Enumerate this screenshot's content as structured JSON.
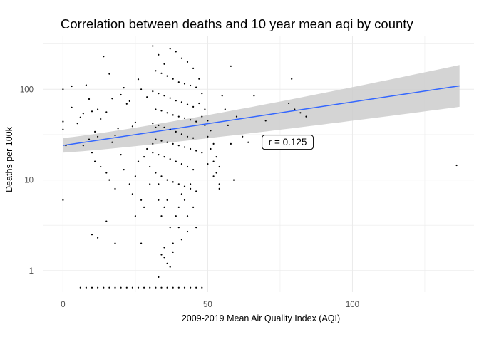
{
  "chart_data": {
    "type": "scatter",
    "title": "Correlation between deaths and 10 year mean aqi by county",
    "xlabel": "2009-2019 Mean Air Quality Index (AQI)",
    "ylabel": "Deaths per 100k",
    "x_scale": "linear",
    "y_scale": "log10",
    "xlim": [
      -7,
      142
    ],
    "ylim": [
      0.58,
      390
    ],
    "x_ticks": [
      0,
      50,
      100
    ],
    "x_tick_labels": [
      "0",
      "50",
      "100"
    ],
    "y_ticks": [
      1,
      10,
      100
    ],
    "y_tick_labels": [
      "1",
      "10",
      "100"
    ],
    "grid": true,
    "legend": "none",
    "colors": {
      "points": "#000000",
      "fit_line": "#3366ff",
      "confidence_band": "#cccccc",
      "grid": "#ebebeb"
    },
    "fit": {
      "method": "linear (log y)",
      "x": [
        0,
        137
      ],
      "y": [
        24,
        109
      ],
      "band_lower": [
        20,
        64
      ],
      "band_upper": [
        29,
        185
      ]
    },
    "annotation": {
      "text": "r = 0.125",
      "x": 69,
      "y": 28
    },
    "points": [
      [
        0,
        100
      ],
      [
        0,
        36
      ],
      [
        0,
        6
      ],
      [
        0,
        44
      ],
      [
        1,
        24
      ],
      [
        3,
        108
      ],
      [
        3,
        63
      ],
      [
        5,
        42
      ],
      [
        6,
        49
      ],
      [
        7,
        54
      ],
      [
        8,
        111
      ],
      [
        9,
        78
      ],
      [
        10,
        57
      ],
      [
        11,
        34
      ],
      [
        12,
        60
      ],
      [
        13,
        47
      ],
      [
        14,
        230
      ],
      [
        15,
        56
      ],
      [
        16,
        148
      ],
      [
        17,
        79
      ],
      [
        18,
        31
      ],
      [
        19,
        37
      ],
      [
        20,
        87
      ],
      [
        21,
        104
      ],
      [
        22,
        69
      ],
      [
        23,
        74
      ],
      [
        24,
        39
      ],
      [
        25,
        43
      ],
      [
        26,
        129
      ],
      [
        27,
        100
      ],
      [
        28,
        5
      ],
      [
        29,
        82
      ],
      [
        7,
        24
      ],
      [
        9,
        28
      ],
      [
        10,
        20
      ],
      [
        11,
        16
      ],
      [
        12,
        30
      ],
      [
        13,
        14
      ],
      [
        15,
        12
      ],
      [
        16,
        10
      ],
      [
        17,
        26
      ],
      [
        18,
        8
      ],
      [
        20,
        19
      ],
      [
        21,
        13
      ],
      [
        23,
        9
      ],
      [
        24,
        7
      ],
      [
        25,
        11
      ],
      [
        26,
        16
      ],
      [
        27,
        6
      ],
      [
        28,
        18
      ],
      [
        29,
        22
      ],
      [
        30,
        14
      ],
      [
        30,
        9
      ],
      [
        31,
        25
      ],
      [
        32,
        38
      ],
      [
        33,
        6
      ],
      [
        33,
        9
      ],
      [
        34,
        4
      ],
      [
        35,
        5
      ],
      [
        36,
        6
      ],
      [
        37,
        3
      ],
      [
        38,
        2
      ],
      [
        39,
        4
      ],
      [
        40,
        3
      ],
      [
        40,
        5
      ],
      [
        41,
        7
      ],
      [
        42,
        6
      ],
      [
        43,
        4
      ],
      [
        44,
        9
      ],
      [
        45,
        5
      ],
      [
        46,
        3
      ],
      [
        10,
        2.5
      ],
      [
        12,
        2.3
      ],
      [
        15,
        3.5
      ],
      [
        18,
        2
      ],
      [
        25,
        4
      ],
      [
        27,
        2
      ],
      [
        34,
        1.5
      ],
      [
        35,
        1.4
      ],
      [
        36,
        1.2
      ],
      [
        37,
        1.1
      ],
      [
        33,
        0.85
      ],
      [
        35,
        1.8
      ],
      [
        38,
        1.6
      ],
      [
        41,
        2.2
      ],
      [
        43,
        2.7
      ],
      [
        31,
        300
      ],
      [
        33,
        240
      ],
      [
        35,
        190
      ],
      [
        37,
        280
      ],
      [
        39,
        260
      ],
      [
        41,
        220
      ],
      [
        43,
        200
      ],
      [
        45,
        170
      ],
      [
        32,
        160
      ],
      [
        34,
        150
      ],
      [
        36,
        140
      ],
      [
        38,
        130
      ],
      [
        40,
        120
      ],
      [
        42,
        115
      ],
      [
        44,
        110
      ],
      [
        46,
        105
      ],
      [
        31,
        95
      ],
      [
        33,
        90
      ],
      [
        35,
        85
      ],
      [
        37,
        80
      ],
      [
        39,
        75
      ],
      [
        41,
        72
      ],
      [
        43,
        68
      ],
      [
        45,
        64
      ],
      [
        32,
        60
      ],
      [
        34,
        58
      ],
      [
        36,
        55
      ],
      [
        38,
        52
      ],
      [
        40,
        50
      ],
      [
        42,
        48
      ],
      [
        44,
        46
      ],
      [
        46,
        44
      ],
      [
        31,
        42
      ],
      [
        33,
        40
      ],
      [
        35,
        38
      ],
      [
        37,
        36
      ],
      [
        39,
        34
      ],
      [
        41,
        32
      ],
      [
        43,
        30
      ],
      [
        45,
        29
      ],
      [
        32,
        28
      ],
      [
        34,
        27
      ],
      [
        36,
        26
      ],
      [
        38,
        25
      ],
      [
        40,
        24
      ],
      [
        42,
        23
      ],
      [
        44,
        22
      ],
      [
        46,
        21
      ],
      [
        31,
        20
      ],
      [
        33,
        19
      ],
      [
        35,
        18
      ],
      [
        37,
        17
      ],
      [
        39,
        16
      ],
      [
        41,
        15
      ],
      [
        43,
        14
      ],
      [
        45,
        13
      ],
      [
        32,
        12
      ],
      [
        34,
        11
      ],
      [
        36,
        10
      ],
      [
        38,
        9.5
      ],
      [
        40,
        9
      ],
      [
        42,
        8.5
      ],
      [
        44,
        8
      ],
      [
        46,
        7.5
      ],
      [
        47,
        130
      ],
      [
        48,
        90
      ],
      [
        49,
        60
      ],
      [
        50,
        45
      ],
      [
        51,
        35
      ],
      [
        52,
        25
      ],
      [
        53,
        18
      ],
      [
        54,
        14
      ],
      [
        47,
        70
      ],
      [
        48,
        50
      ],
      [
        49,
        40
      ],
      [
        50,
        30
      ],
      [
        51,
        22
      ],
      [
        52,
        16
      ],
      [
        53,
        12
      ],
      [
        54,
        9
      ],
      [
        48,
        20
      ],
      [
        50,
        15
      ],
      [
        52,
        11
      ],
      [
        54,
        8
      ],
      [
        56,
        60
      ],
      [
        57,
        40
      ],
      [
        58,
        25
      ],
      [
        59,
        10
      ],
      [
        55,
        85
      ],
      [
        58,
        180
      ],
      [
        60,
        50
      ],
      [
        62,
        30
      ],
      [
        64,
        26
      ],
      [
        66,
        85
      ],
      [
        70,
        45
      ],
      [
        78,
        70
      ],
      [
        79,
        130
      ],
      [
        80,
        60
      ],
      [
        82,
        55
      ],
      [
        84,
        50
      ],
      [
        136,
        14.5
      ],
      [
        6,
        0.65
      ],
      [
        8,
        0.65
      ],
      [
        10,
        0.65
      ],
      [
        12,
        0.65
      ],
      [
        14,
        0.65
      ],
      [
        16,
        0.65
      ],
      [
        18,
        0.65
      ],
      [
        20,
        0.65
      ],
      [
        22,
        0.65
      ],
      [
        24,
        0.65
      ],
      [
        26,
        0.65
      ],
      [
        28,
        0.65
      ],
      [
        30,
        0.65
      ],
      [
        32,
        0.65
      ],
      [
        34,
        0.65
      ],
      [
        36,
        0.65
      ],
      [
        38,
        0.65
      ],
      [
        40,
        0.65
      ],
      [
        42,
        0.65
      ],
      [
        44,
        0.65
      ],
      [
        46,
        0.65
      ],
      [
        48,
        0.65
      ]
    ]
  }
}
